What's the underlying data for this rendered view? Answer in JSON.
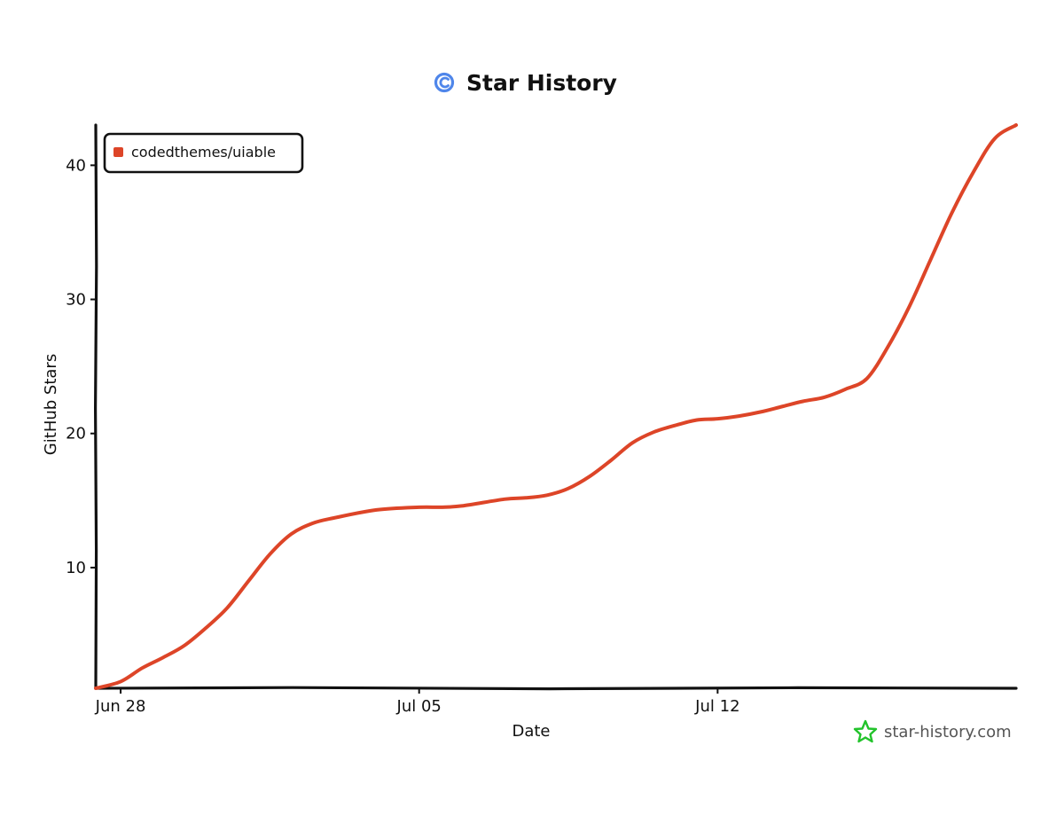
{
  "title": "Star History",
  "watermark": "star-history.com",
  "colors": {
    "series": "#dd4528",
    "axis": "#111111",
    "logo": "#4f86ea",
    "brand_star": "#22c32b",
    "brand_text": "#555555"
  },
  "chart_data": {
    "type": "line",
    "title": "Star History",
    "xlabel": "Date",
    "ylabel": "GitHub Stars",
    "x_ticks": [
      "Jun 28",
      "Jul 05",
      "Jul 12"
    ],
    "x_tick_dates": [
      "2024-06-28",
      "2024-07-05",
      "2024-07-12"
    ],
    "xlim": [
      "2024-06-27T10:00",
      "2024-07-19T00:00"
    ],
    "y_ticks": [
      10,
      20,
      30,
      40
    ],
    "ylim": [
      1,
      43
    ],
    "grid": false,
    "legend": "top-left",
    "series": [
      {
        "name": "codedthemes/uiable",
        "x": [
          "2024-06-27T10:00",
          "2024-06-28T00:00",
          "2024-06-28T12:00",
          "2024-06-29T00:00",
          "2024-06-29T12:00",
          "2024-06-30T00:00",
          "2024-06-30T12:00",
          "2024-07-01T00:00",
          "2024-07-01T12:00",
          "2024-07-02T00:00",
          "2024-07-02T12:00",
          "2024-07-03T00:00",
          "2024-07-04T00:00",
          "2024-07-05T00:00",
          "2024-07-05T12:00",
          "2024-07-06T00:00",
          "2024-07-07T00:00",
          "2024-07-07T12:00",
          "2024-07-08T00:00",
          "2024-07-08T12:00",
          "2024-07-09T00:00",
          "2024-07-09T12:00",
          "2024-07-10T00:00",
          "2024-07-10T12:00",
          "2024-07-11T00:00",
          "2024-07-11T12:00",
          "2024-07-12T00:00",
          "2024-07-12T12:00",
          "2024-07-13T00:00",
          "2024-07-13T12:00",
          "2024-07-14T00:00",
          "2024-07-14T12:00",
          "2024-07-15T00:00",
          "2024-07-15T12:00",
          "2024-07-16T00:00",
          "2024-07-16T12:00",
          "2024-07-17T00:00",
          "2024-07-17T12:00",
          "2024-07-18T00:00",
          "2024-07-18T12:00",
          "2024-07-19T00:00"
        ],
        "y": [
          1,
          1.5,
          2.5,
          3.3,
          4.2,
          5.5,
          7,
          9,
          11,
          12.5,
          13.3,
          13.7,
          14.3,
          14.5,
          14.5,
          14.6,
          15.1,
          15.2,
          15.4,
          15.9,
          16.8,
          18,
          19.3,
          20.1,
          20.6,
          21,
          21.1,
          21.3,
          21.6,
          22,
          22.4,
          22.7,
          23.3,
          24.1,
          26.5,
          29.5,
          33,
          36.5,
          39.5,
          42,
          43
        ]
      }
    ]
  }
}
